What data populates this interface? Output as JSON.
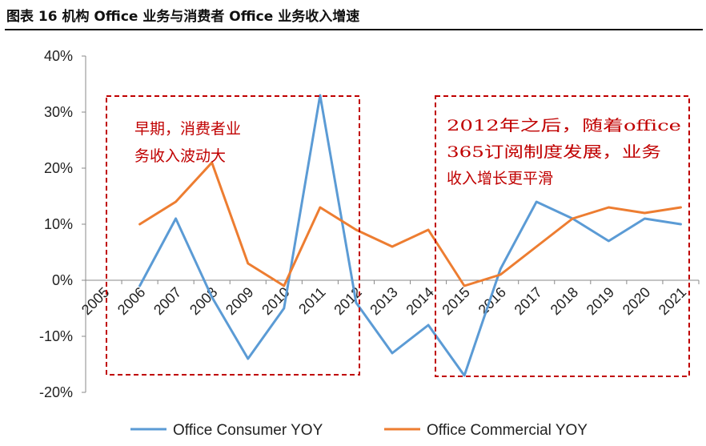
{
  "figure": {
    "title": "图表 16 机构 Office 业务与消费者 Office 业务收入增速"
  },
  "chart_data": {
    "type": "line",
    "categories": [
      "2005",
      "2006",
      "2007",
      "2008",
      "2009",
      "2010",
      "2011",
      "2012",
      "2013",
      "2014",
      "2015",
      "2016",
      "2017",
      "2018",
      "2019",
      "2020",
      "2021"
    ],
    "y_tick_labels": [
      "40%",
      "30%",
      "20%",
      "10%",
      "0%",
      "-10%",
      "-20%"
    ],
    "ylim": [
      -20,
      40
    ],
    "unit": "%",
    "legend_position": "bottom",
    "series": [
      {
        "name": "Office Consumer YOY",
        "color": "#5b9bd5",
        "x": [
          "2006",
          "2007",
          "2008",
          "2009",
          "2010",
          "2011",
          "2012",
          "2013",
          "2014",
          "2015",
          "2016",
          "2017",
          "2018",
          "2019",
          "2020",
          "2021"
        ],
        "values": [
          -1,
          11,
          -3,
          -14,
          -5,
          33,
          -4,
          -13,
          -8,
          -17,
          2,
          14,
          11,
          7,
          11,
          10
        ]
      },
      {
        "name": "Office Commercial YOY",
        "color": "#ed7d31",
        "x": [
          "2006",
          "2007",
          "2008",
          "2009",
          "2010",
          "2011",
          "2012",
          "2013",
          "2014",
          "2015",
          "2016",
          "2017",
          "2018",
          "2019",
          "2020",
          "2021"
        ],
        "values": [
          10,
          14,
          21,
          3,
          -1,
          13,
          9,
          6,
          9,
          -1,
          1,
          6,
          11,
          13,
          12,
          13
        ]
      }
    ],
    "annotations": [
      {
        "lines": [
          "早期，消费者业",
          "务收入波动大"
        ],
        "color": "#c00000"
      },
      {
        "lines": [
          "2012年之后，随着office",
          "365订阅制度发展，业务",
          "收入增长更平滑"
        ],
        "color": "#c00000"
      }
    ]
  }
}
